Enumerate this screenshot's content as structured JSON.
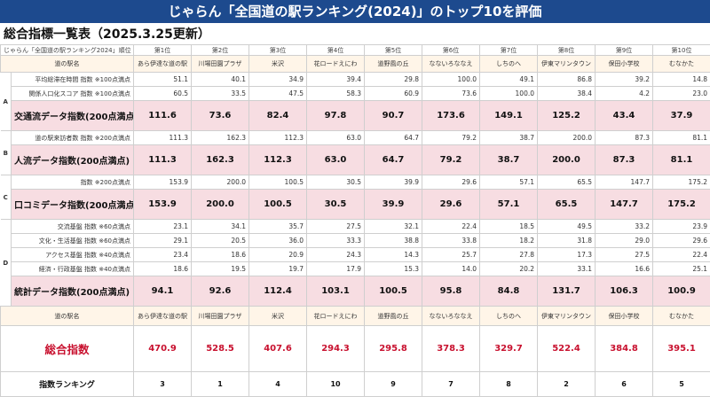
{
  "header": {
    "banner": "じゃらん「全国道の駅ランキング(2024)」のトップ10を評価",
    "subtitle": "総合指標一覧表（2025.3.25更新）"
  },
  "top_row": {
    "caption": "じゃらん「全国道の駅ランキング2024」順位",
    "ranks": [
      "第1位",
      "第2位",
      "第3位",
      "第4位",
      "第5位",
      "第6位",
      "第7位",
      "第8位",
      "第9位",
      "第10位"
    ]
  },
  "station_col_label": "道の駅名",
  "stations": [
    "あら伊達な道の駅",
    "川場田園プラザ",
    "米沢",
    "花ロードえにわ",
    "道野風の丘",
    "なないろななえ",
    "しちのへ",
    "伊東マリンタウン",
    "保田小学校",
    "むなかた"
  ],
  "sections": [
    {
      "group": "A",
      "rows": [
        {
          "label": "平均総滞在時間 指数 ※100点満点",
          "values": [
            "51.1",
            "40.1",
            "34.9",
            "39.4",
            "29.8",
            "100.0",
            "49.1",
            "86.8",
            "39.2",
            "14.8"
          ]
        },
        {
          "label": "関係人口化スコア 指数 ※100点満点",
          "values": [
            "60.5",
            "33.5",
            "47.5",
            "58.3",
            "60.9",
            "73.6",
            "100.0",
            "38.4",
            "4.2",
            "23.0"
          ]
        }
      ],
      "total": {
        "label": "交通流データ指数(200点満点)",
        "values": [
          "111.6",
          "73.6",
          "82.4",
          "97.8",
          "90.7",
          "173.6",
          "149.1",
          "125.2",
          "43.4",
          "37.9"
        ]
      }
    },
    {
      "group": "B",
      "rows": [
        {
          "label": "道の駅来訪者数 指数 ※200点満点",
          "values": [
            "111.3",
            "162.3",
            "112.3",
            "63.0",
            "64.7",
            "79.2",
            "38.7",
            "200.0",
            "87.3",
            "81.1"
          ]
        }
      ],
      "total": {
        "label": "人流データ指数(200点満点)",
        "values": [
          "111.3",
          "162.3",
          "112.3",
          "63.0",
          "64.7",
          "79.2",
          "38.7",
          "200.0",
          "87.3",
          "81.1"
        ]
      }
    },
    {
      "group": "C",
      "rows": [
        {
          "label": "指数 ※200点満点",
          "values": [
            "153.9",
            "200.0",
            "100.5",
            "30.5",
            "39.9",
            "29.6",
            "57.1",
            "65.5",
            "147.7",
            "175.2"
          ]
        }
      ],
      "total": {
        "label": "口コミデータ指数(200点満点)",
        "values": [
          "153.9",
          "200.0",
          "100.5",
          "30.5",
          "39.9",
          "29.6",
          "57.1",
          "65.5",
          "147.7",
          "175.2"
        ]
      }
    },
    {
      "group": "D",
      "rows": [
        {
          "label": "交流基盤 指数 ※60点満点",
          "values": [
            "23.1",
            "34.1",
            "35.7",
            "27.5",
            "32.1",
            "22.4",
            "18.5",
            "49.5",
            "33.2",
            "23.9"
          ]
        },
        {
          "label": "文化・生活基盤 指数 ※60点満点",
          "values": [
            "29.1",
            "20.5",
            "36.0",
            "33.3",
            "38.8",
            "33.8",
            "18.2",
            "31.8",
            "29.0",
            "29.6"
          ]
        },
        {
          "label": "アクセス基盤 指数 ※40点満点",
          "values": [
            "23.4",
            "18.6",
            "20.9",
            "24.3",
            "14.3",
            "25.7",
            "27.8",
            "17.3",
            "27.5",
            "22.4"
          ]
        },
        {
          "label": "経済・行政基盤 指数 ※40点満点",
          "values": [
            "18.6",
            "19.5",
            "19.7",
            "17.9",
            "15.3",
            "14.0",
            "20.2",
            "33.1",
            "16.6",
            "25.1"
          ]
        }
      ],
      "total": {
        "label": "統計データ指数(200点満点)",
        "values": [
          "94.1",
          "92.6",
          "112.4",
          "103.1",
          "100.5",
          "95.8",
          "84.8",
          "131.7",
          "106.3",
          "100.9"
        ]
      }
    }
  ],
  "summary": {
    "col_label": "道の駅名",
    "score_label": "総合指数",
    "scores": [
      "470.9",
      "528.5",
      "407.6",
      "294.3",
      "295.8",
      "378.3",
      "329.7",
      "522.4",
      "384.8",
      "395.1"
    ],
    "rank_label": "指数ランキング",
    "ranks": [
      "3",
      "1",
      "4",
      "10",
      "9",
      "7",
      "8",
      "2",
      "6",
      "5"
    ]
  },
  "colors": {
    "banner_bg": "#1d4a8e",
    "total_row_bg": "#f7dde2",
    "header_row_bg": "#fff5e8",
    "score_text": "#c8102e"
  }
}
